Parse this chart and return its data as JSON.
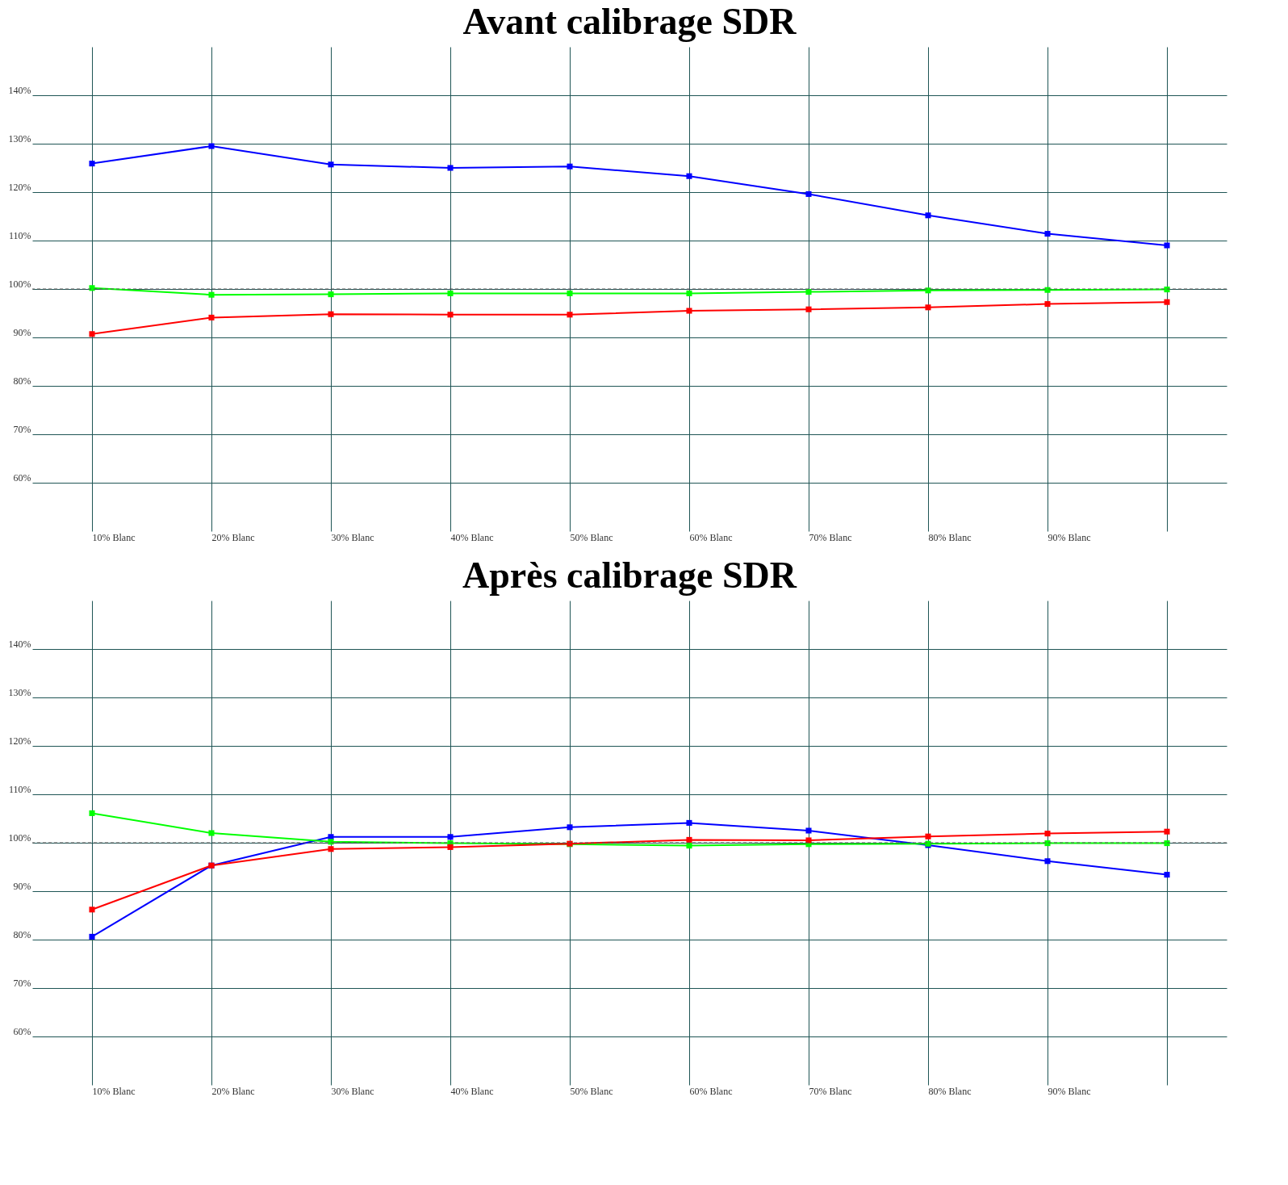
{
  "chart_data": [
    {
      "type": "line",
      "title": "Avant calibrage SDR",
      "categories": [
        "10% Blanc",
        "20% Blanc",
        "30% Blanc",
        "40% Blanc",
        "50% Blanc",
        "60% Blanc",
        "70% Blanc",
        "80% Blanc",
        "90% Blanc",
        null
      ],
      "series": [
        {
          "color": "#0000ff",
          "values": [
            125.9,
            129.5,
            125.7,
            125.0,
            125.3,
            123.3,
            119.6,
            115.2,
            111.4,
            109.0
          ]
        },
        {
          "color": "#00ff00",
          "values": [
            100.2,
            98.8,
            98.9,
            99.1,
            99.1,
            99.1,
            99.4,
            99.7,
            99.8,
            99.9
          ]
        },
        {
          "color": "#ff0000",
          "values": [
            90.7,
            94.1,
            94.8,
            94.7,
            94.7,
            95.5,
            95.8,
            96.2,
            96.9,
            97.3
          ]
        }
      ],
      "ylim": [
        50,
        150
      ],
      "yticks": [
        {
          "value": 60,
          "label": "60%"
        },
        {
          "value": 70,
          "label": "70%"
        },
        {
          "value": 80,
          "label": "80%"
        },
        {
          "value": 90,
          "label": "90%"
        },
        {
          "value": 100,
          "label": "100%"
        },
        {
          "value": 110,
          "label": "110%"
        },
        {
          "value": 120,
          "label": "120%"
        },
        {
          "value": 130,
          "label": "130%"
        },
        {
          "value": 140,
          "label": "140%"
        }
      ],
      "ref_lines": [
        {
          "axis": "y",
          "value": 100,
          "color": "#555555",
          "line_style": "dashed"
        }
      ],
      "grid": true,
      "marker": "square",
      "line_style": "solid"
    },
    {
      "type": "line",
      "title": "Après calibrage SDR",
      "categories": [
        "10% Blanc",
        "20% Blanc",
        "30% Blanc",
        "40% Blanc",
        "50% Blanc",
        "60% Blanc",
        "70% Blanc",
        "80% Blanc",
        "90% Blanc",
        null
      ],
      "series": [
        {
          "color": "#0000ff",
          "values": [
            80.6,
            95.3,
            101.2,
            101.2,
            103.2,
            104.1,
            102.5,
            99.5,
            96.2,
            93.4
          ]
        },
        {
          "color": "#00ff00",
          "values": [
            106.1,
            102.0,
            100.2,
            99.9,
            99.7,
            99.4,
            99.7,
            99.8,
            99.9,
            99.9
          ]
        },
        {
          "color": "#ff0000",
          "values": [
            86.2,
            95.3,
            98.7,
            99.1,
            99.8,
            100.6,
            100.5,
            101.3,
            101.9,
            102.3
          ]
        }
      ],
      "ylim": [
        50,
        150
      ],
      "yticks": [
        {
          "value": 60,
          "label": "60%"
        },
        {
          "value": 70,
          "label": "70%"
        },
        {
          "value": 80,
          "label": "80%"
        },
        {
          "value": 90,
          "label": "90%"
        },
        {
          "value": 100,
          "label": "100%"
        },
        {
          "value": 110,
          "label": "110%"
        },
        {
          "value": 120,
          "label": "120%"
        },
        {
          "value": 130,
          "label": "130%"
        },
        {
          "value": 140,
          "label": "140%"
        }
      ],
      "ref_lines": [
        {
          "axis": "y",
          "value": 100,
          "color": "#555555",
          "line_style": "dashed"
        }
      ],
      "grid": true,
      "marker": "square",
      "line_style": "solid"
    }
  ]
}
